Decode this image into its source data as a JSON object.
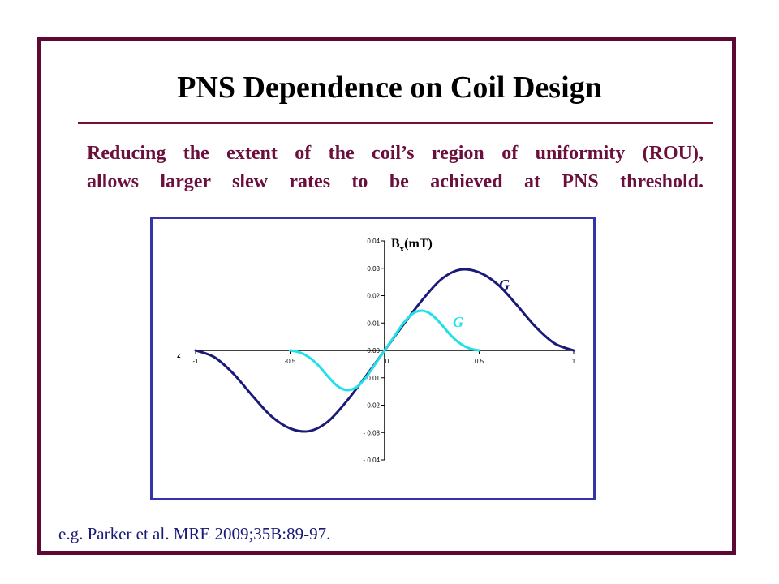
{
  "slide": {
    "title": "PNS Dependence on Coil Design",
    "subtitle_line1": "Reducing the extent of the coil’s region of uniformity (ROU),",
    "subtitle_line2": "allows larger slew rates to be achieved at PNS threshold.",
    "citation": "e.g. Parker et al. MRE 2009;35B:89-97."
  },
  "colors": {
    "frame": "#5c0a33",
    "subtitle": "#6b0f3c",
    "series_large": "#1a1a7a",
    "series_small": "#22e0e8",
    "chart_border": "#3333aa"
  },
  "chart_data": {
    "type": "line",
    "title": "",
    "xlabel": "z",
    "ylabel_main": "B",
    "ylabel_sub": "x",
    "ylabel_tail": "(mT)",
    "xlim": [
      -1,
      1
    ],
    "ylim": [
      -0.04,
      0.04
    ],
    "x_ticks": [
      -1,
      -0.5,
      0,
      0.5,
      1
    ],
    "x_tick_labels": [
      "-1",
      "-0.5",
      "0",
      "0.5",
      "1"
    ],
    "y_ticks": [
      0.04,
      0.03,
      0.02,
      0.01,
      0.0,
      -0.01,
      -0.02,
      -0.03,
      -0.04
    ],
    "y_tick_labels": [
      "0.04",
      "0.03",
      "0.02",
      "0.01",
      "0.00",
      "- 0.01",
      "- 0.02",
      "- 0.03",
      "- 0.04"
    ],
    "series": [
      {
        "name": "G",
        "label": "G",
        "color": "#1a1a7a",
        "x": [
          -1,
          -0.9,
          -0.8,
          -0.7,
          -0.6,
          -0.5,
          -0.4,
          -0.3,
          -0.2,
          -0.1,
          0,
          0.1,
          0.2,
          0.3,
          0.4,
          0.5,
          0.6,
          0.7,
          0.8,
          0.9,
          1
        ],
        "y": [
          0,
          -0.0025,
          -0.0085,
          -0.0165,
          -0.024,
          -0.0285,
          -0.0295,
          -0.026,
          -0.0185,
          -0.0095,
          0,
          0.0095,
          0.0185,
          0.026,
          0.0295,
          0.0285,
          0.024,
          0.0165,
          0.0085,
          0.0025,
          0
        ]
      },
      {
        "name": "G",
        "label": "G",
        "color": "#22e0e8",
        "x": [
          -0.5,
          -0.45,
          -0.4,
          -0.35,
          -0.3,
          -0.25,
          -0.2,
          -0.15,
          -0.1,
          -0.05,
          0,
          0.05,
          0.1,
          0.15,
          0.2,
          0.25,
          0.3,
          0.35,
          0.4,
          0.45,
          0.5
        ],
        "y": [
          0,
          -0.0007,
          -0.0025,
          -0.0055,
          -0.0095,
          -0.013,
          -0.0145,
          -0.0135,
          -0.01,
          -0.005,
          0,
          0.005,
          0.01,
          0.0135,
          0.0145,
          0.013,
          0.0095,
          0.0055,
          0.0025,
          0.0007,
          0
        ]
      }
    ]
  }
}
